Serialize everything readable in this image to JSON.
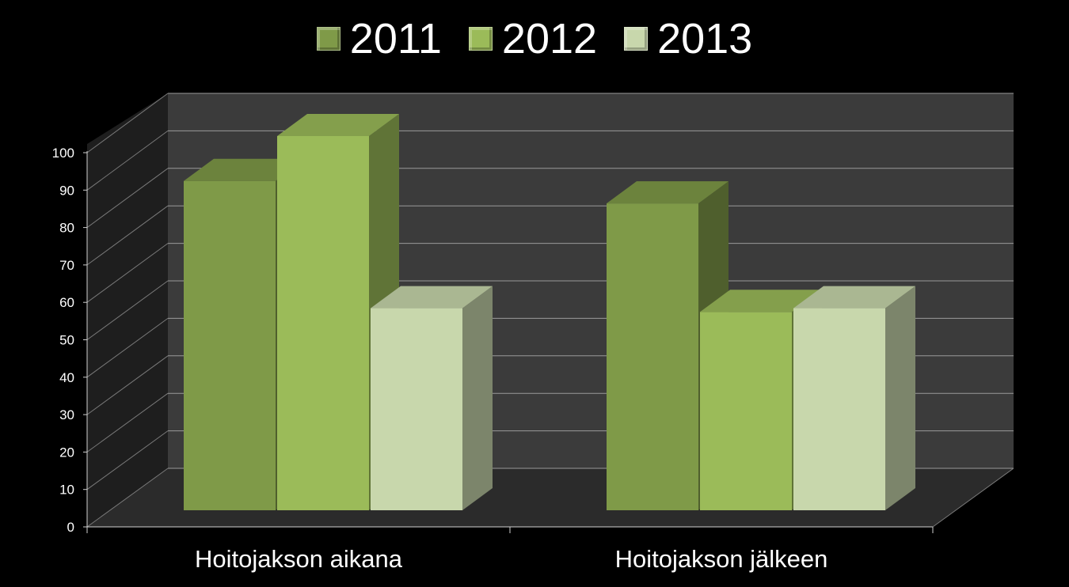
{
  "chart_data": {
    "type": "bar",
    "categories": [
      "Hoitojakson aikana",
      "Hoitojakson jälkeen"
    ],
    "series": [
      {
        "name": "2011",
        "values": [
          88,
          82
        ],
        "color": "#7f9a48"
      },
      {
        "name": "2012",
        "values": [
          100,
          53
        ],
        "color": "#9bbb59"
      },
      {
        "name": "2013",
        "values": [
          54,
          54
        ],
        "color": "#c8d7ac"
      }
    ],
    "ylim": [
      0,
      100
    ],
    "yticks": [
      "0",
      "10",
      "20",
      "30",
      "40",
      "50",
      "60",
      "70",
      "80",
      "90",
      "100"
    ],
    "grid": true,
    "legend_position": "top",
    "style": "3d-column",
    "background_color": "#000000"
  }
}
